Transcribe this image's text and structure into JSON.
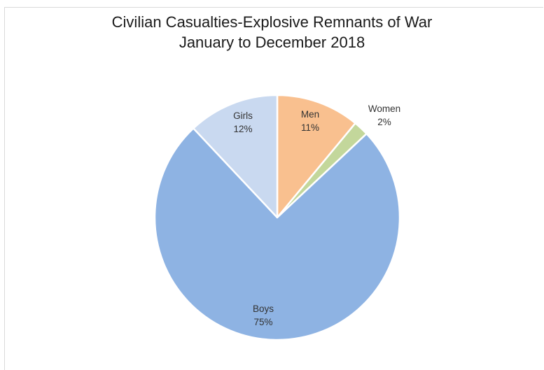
{
  "chart_data": {
    "type": "pie",
    "title_lines": [
      "Civilian Casualties-Explosive Remnants of War",
      "January to December 2018"
    ],
    "slices": [
      {
        "label": "Men",
        "value": 11,
        "percent_label": "11%",
        "color": "#f9c08f"
      },
      {
        "label": "Women",
        "value": 2,
        "percent_label": "2%",
        "color": "#c3d79b"
      },
      {
        "label": "Boys",
        "value": 75,
        "percent_label": "75%",
        "color": "#8eb3e3"
      },
      {
        "label": "Girls",
        "value": 12,
        "percent_label": "12%",
        "color": "#c9d9f0"
      }
    ],
    "start_angle": "12 o'clock",
    "direction": "clockwise",
    "slice_border_color": "#ffffff",
    "legend": "none"
  }
}
